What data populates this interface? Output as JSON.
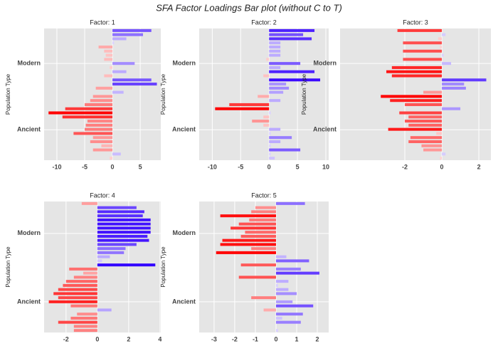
{
  "title": "SFA Factor Loadings Bar plot (without C to T)",
  "chart_data": [
    {
      "type": "bar",
      "orientation": "horizontal",
      "title": "Factor: 1",
      "ylabel": "Population Type",
      "values": [
        7,
        5.5,
        2.5,
        0.3,
        -2.5,
        -1.5,
        -1.2,
        -1.5,
        4,
        -0.5,
        2.5,
        -1.5,
        7,
        8,
        -3,
        2,
        -3.5,
        -4,
        -5,
        -8.5,
        -11.5,
        -9,
        -4.5,
        -4.8,
        -5,
        -7,
        -3.5,
        -4,
        -2,
        -3.5,
        1.5,
        -0.5
      ],
      "xlim": [
        -12.3,
        8.7
      ],
      "xticks": [
        -10,
        -5,
        0,
        5
      ],
      "ylim": [
        32,
        0
      ],
      "yticks": [
        {
          "value": 8.5,
          "label": "Modern"
        },
        {
          "value": 24.6,
          "label": "Ancient"
        }
      ],
      "colors": {
        "negative": "#ff0000",
        "zero": "#ffffff",
        "positive": "#3300ff"
      },
      "grid": true
    },
    {
      "type": "bar",
      "orientation": "horizontal",
      "title": "Factor: 2",
      "ylabel": "Population Type",
      "values": [
        8,
        6,
        7.5,
        2,
        2,
        2,
        2,
        -0.5,
        5.5,
        2,
        8,
        -1,
        9,
        3,
        3.5,
        2.5,
        -2,
        2,
        -7,
        -9.5,
        0.3,
        -1,
        -3,
        -1,
        2,
        0.3,
        4,
        2,
        0.3,
        5.5,
        0.3,
        1
      ],
      "xlim": [
        -12.3,
        10.5
      ],
      "xticks": [
        -10,
        -5,
        0,
        5,
        10
      ],
      "ylim": [
        32,
        0
      ],
      "yticks": [
        {
          "value": 8.5,
          "label": "Modern"
        },
        {
          "value": 24.6,
          "label": "Ancient"
        }
      ],
      "colors": {
        "negative": "#ff0000",
        "zero": "#ffffff",
        "positive": "#3300ff"
      },
      "grid": true
    },
    {
      "type": "bar",
      "orientation": "horizontal",
      "title": "Factor: 3",
      "ylabel": "Population Type",
      "values": [
        -2.4,
        0.2,
        -0.2,
        -2.1,
        -0.1,
        -2.1,
        0.1,
        -2.1,
        0.5,
        -2.7,
        -3,
        -2.7,
        2.4,
        1.2,
        1.3,
        -1,
        -3.3,
        -2.8,
        -2,
        1,
        -2.3,
        -1.8,
        -2,
        -1.8,
        -2.9,
        -0.3,
        -1.7,
        -1.8,
        -1.1,
        -1,
        0.2,
        -0.1
      ],
      "xlim": [
        -5.5,
        2.65
      ],
      "xticks": [
        -2,
        0,
        2
      ],
      "ylim": [
        32,
        0
      ],
      "yticks": [
        {
          "value": 8.5,
          "label": "Modern"
        },
        {
          "value": 24.6,
          "label": "Ancient"
        }
      ],
      "colors": {
        "negative": "#ff0000",
        "zero": "#ffffff",
        "positive": "#3300ff"
      },
      "grid": true
    },
    {
      "type": "bar",
      "orientation": "horizontal",
      "title": "Factor: 4",
      "ylabel": "Population Type",
      "values": [
        -1,
        2.5,
        3,
        2.9,
        3.4,
        3.4,
        3.4,
        3.4,
        3.2,
        3.3,
        2.5,
        1.8,
        1.7,
        0.8,
        0.3,
        3.7,
        -1.8,
        -0.9,
        -1.5,
        -2,
        -2.2,
        -2.5,
        -2.8,
        -2.5,
        -3.1,
        -1.7,
        0.9,
        -1.3,
        -1.7,
        -2.5,
        -1.5,
        -1.5
      ],
      "xlim": [
        -3.4,
        4.05
      ],
      "xticks": [
        -2,
        0,
        2,
        4
      ],
      "ylim": [
        32,
        0
      ],
      "yticks": [
        {
          "value": 7.8,
          "label": "Modern"
        },
        {
          "value": 24.5,
          "label": "Ancient"
        }
      ],
      "colors": {
        "negative": "#ff0000",
        "zero": "#ffffff",
        "positive": "#3300ff"
      },
      "grid": true
    },
    {
      "type": "bar",
      "orientation": "horizontal",
      "title": "Factor: 5",
      "ylabel": "Population Type",
      "values": [
        1.4,
        -1,
        -1.2,
        -2.7,
        -1.3,
        -1.8,
        -2.2,
        -1.5,
        -1.7,
        -2.6,
        -2.7,
        -1.2,
        -2.9,
        0.5,
        1.6,
        -1.7,
        1.2,
        2.1,
        -1.8,
        0.6,
        0.1,
        0.6,
        1,
        -1.2,
        0.8,
        1.8,
        -0.6,
        1.3,
        0.3,
        1.2,
        0,
        0.1
      ],
      "xlim": [
        -3.72,
        2.55
      ],
      "xticks": [
        -3,
        -2,
        -1,
        0,
        1,
        2
      ],
      "ylim": [
        32,
        0
      ],
      "yticks": [
        {
          "value": 7.8,
          "label": "Modern"
        },
        {
          "value": 24.5,
          "label": "Ancient"
        }
      ],
      "colors": {
        "negative": "#ff0000",
        "zero": "#ffffff",
        "positive": "#3300ff"
      },
      "grid": true
    }
  ]
}
